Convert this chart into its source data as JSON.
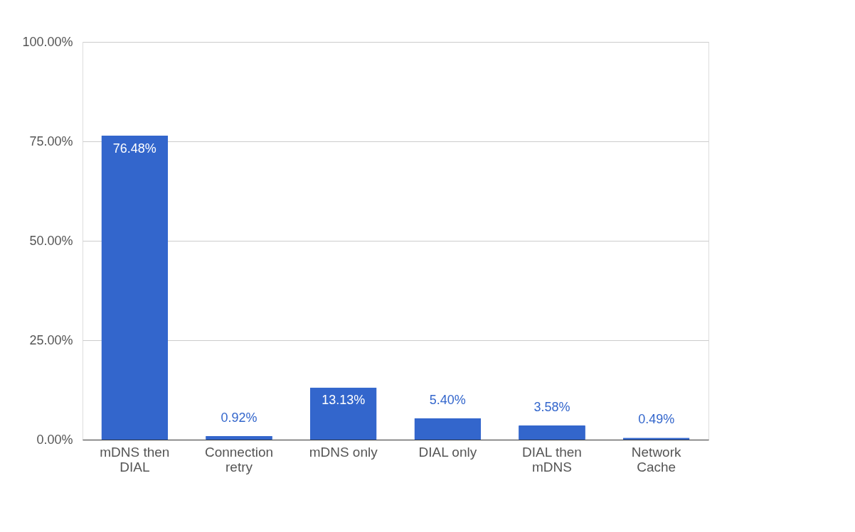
{
  "chart_data": {
    "type": "bar",
    "categories": [
      "mDNS then\nDIAL",
      "Connection\nretry",
      "mDNS only",
      "DIAL only",
      "DIAL then\nmDNS",
      "Network\nCache"
    ],
    "series": [
      {
        "color": "#3366cc",
        "values": [
          76.48,
          0.92,
          13.13,
          5.4,
          3.58,
          0.49
        ]
      }
    ],
    "value_labels": [
      "76.48%",
      "0.92%",
      "13.13%",
      "5.40%",
      "3.58%",
      "0.49%"
    ],
    "ylim": [
      0,
      100
    ],
    "yticks": [
      {
        "value": 0,
        "label": "0.00%"
      },
      {
        "value": 25,
        "label": "25.00%"
      },
      {
        "value": 50,
        "label": "50.00%"
      },
      {
        "value": 75,
        "label": "75.00%"
      },
      {
        "value": 100,
        "label": "100.00%"
      }
    ],
    "grid": "y"
  }
}
